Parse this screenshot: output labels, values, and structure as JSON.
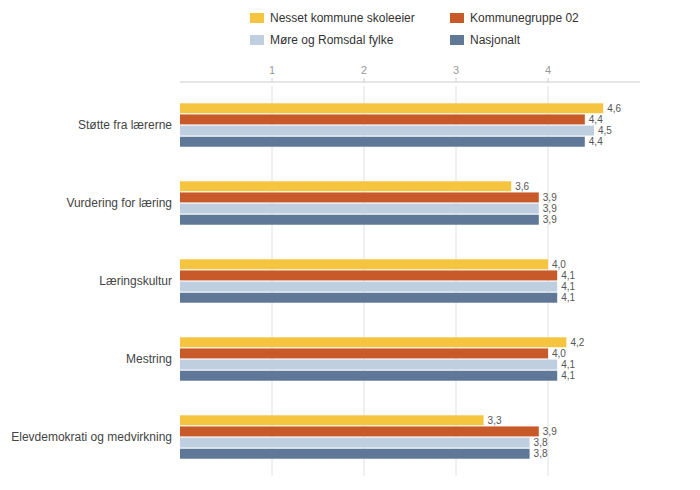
{
  "chart_data": {
    "type": "bar",
    "orientation": "horizontal",
    "categories": [
      "Støtte fra lærerne",
      "Vurdering for læring",
      "Læringskultur",
      "Mestring",
      "Elevdemokrati og medvirkning"
    ],
    "series": [
      {
        "name": "Nesset kommune skoleeier",
        "color": "#F5C540",
        "values": [
          4.6,
          3.6,
          4.0,
          4.2,
          3.3
        ],
        "value_labels": [
          "4,6",
          "3,6",
          "4,0",
          "4,2",
          "3,3"
        ]
      },
      {
        "name": "Kommunegruppe 02",
        "color": "#C85A2A",
        "values": [
          4.4,
          3.9,
          4.1,
          4.0,
          3.9
        ],
        "value_labels": [
          "4,4",
          "3,9",
          "4,1",
          "4,0",
          "3,9"
        ]
      },
      {
        "name": "Møre og Romsdal fylke",
        "color": "#C0CFDF",
        "values": [
          4.5,
          3.9,
          4.1,
          4.1,
          3.8
        ],
        "value_labels": [
          "4,5",
          "3,9",
          "4,1",
          "4,1",
          "3,8"
        ]
      },
      {
        "name": "Nasjonalt",
        "color": "#607898",
        "values": [
          4.4,
          3.9,
          4.1,
          4.1,
          3.8
        ],
        "value_labels": [
          "4,4",
          "3,9",
          "4,1",
          "4,1",
          "3,8"
        ]
      }
    ],
    "xlim": [
      0,
      5.0
    ],
    "xticks": [
      1,
      2,
      3,
      4
    ],
    "grid": true,
    "data_labels": true,
    "legend": "top"
  }
}
